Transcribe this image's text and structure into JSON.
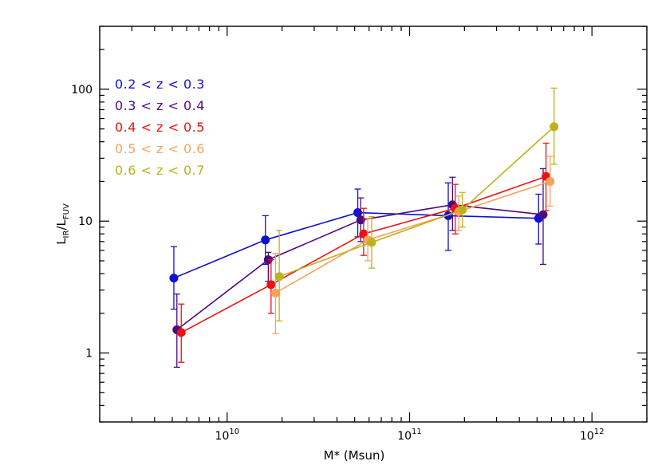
{
  "chart_data": {
    "type": "scatter",
    "xscale": "log",
    "yscale": "log",
    "xlim": [
      2000000000.0,
      2000000000000.0
    ],
    "ylim": [
      0.3,
      300
    ],
    "xlabel": "M* (Msun)",
    "ylabel_main": "L",
    "ylabel_sub1": "IR",
    "ylabel_slash": "/L",
    "ylabel_sub2": "FUV",
    "x_ticks": [
      {
        "value": 10000000000.0,
        "base": "10",
        "exp": "10"
      },
      {
        "value": 100000000000.0,
        "base": "10",
        "exp": "11"
      },
      {
        "value": 1000000000000.0,
        "base": "10",
        "exp": "12"
      }
    ],
    "y_ticks": [
      {
        "value": 1,
        "label": "1"
      },
      {
        "value": 10,
        "label": "10"
      },
      {
        "value": 100,
        "label": "100"
      }
    ],
    "grid": false,
    "legend_position": "top-left",
    "series": [
      {
        "name": "0.2 < z < 0.3",
        "color": "#1010d0",
        "points": [
          {
            "x": 5100000000.0,
            "y": 3.7,
            "lo": 2.15,
            "hi": 6.4
          },
          {
            "x": 16200000000.0,
            "y": 7.2,
            "lo": 4.7,
            "hi": 11.0
          },
          {
            "x": 52000000000.0,
            "y": 11.6,
            "lo": 7.6,
            "hi": 17.5
          },
          {
            "x": 163000000000.0,
            "y": 11.0,
            "lo": 6.0,
            "hi": 19.5
          },
          {
            "x": 510000000000.0,
            "y": 10.5,
            "lo": 6.7,
            "hi": 16.0
          }
        ]
      },
      {
        "name": "0.3 < z < 0.4",
        "color": "#4b0a7e",
        "points": [
          {
            "x": 5300000000.0,
            "y": 1.5,
            "lo": 0.78,
            "hi": 2.8
          },
          {
            "x": 16800000000.0,
            "y": 5.1,
            "lo": 3.5,
            "hi": 5.8
          },
          {
            "x": 54000000000.0,
            "y": 10.2,
            "lo": 7.0,
            "hi": 15.0
          },
          {
            "x": 172000000000.0,
            "y": 13.3,
            "lo": 8.5,
            "hi": 21.5
          },
          {
            "x": 540000000000.0,
            "y": 11.2,
            "lo": 4.7,
            "hi": 25.0
          }
        ]
      },
      {
        "name": "0.4 < z < 0.5",
        "color": "#ee1111",
        "points": [
          {
            "x": 5600000000.0,
            "y": 1.43,
            "lo": 0.85,
            "hi": 2.35
          },
          {
            "x": 17400000000.0,
            "y": 3.3,
            "lo": 2.0,
            "hi": 5.1
          },
          {
            "x": 56000000000.0,
            "y": 8.0,
            "lo": 5.5,
            "hi": 12.5
          },
          {
            "x": 178000000000.0,
            "y": 12.5,
            "lo": 8.0,
            "hi": 19.0
          },
          {
            "x": 560000000000.0,
            "y": 21.8,
            "lo": 12.0,
            "hi": 39.0
          }
        ]
      },
      {
        "name": "0.5 < z < 0.6",
        "color": "#f7a35c",
        "points": [
          {
            "x": 18400000000.0,
            "y": 2.85,
            "lo": 1.4,
            "hi": 5.7
          },
          {
            "x": 59000000000.0,
            "y": 7.2,
            "lo": 5.0,
            "hi": 10.5
          },
          {
            "x": 186000000000.0,
            "y": 11.8,
            "lo": 8.5,
            "hi": 15.5
          },
          {
            "x": 590000000000.0,
            "y": 20.0,
            "lo": 13.0,
            "hi": 31.0
          }
        ]
      },
      {
        "name": "0.6 < z < 0.7",
        "color": "#bdb21c",
        "points": [
          {
            "x": 19300000000.0,
            "y": 3.8,
            "lo": 1.75,
            "hi": 8.5
          },
          {
            "x": 62000000000.0,
            "y": 6.9,
            "lo": 4.4,
            "hi": 10.8
          },
          {
            "x": 195000000000.0,
            "y": 12.2,
            "lo": 9.0,
            "hi": 16.5
          },
          {
            "x": 620000000000.0,
            "y": 52.0,
            "lo": 27.0,
            "hi": 102.0
          }
        ]
      }
    ]
  }
}
